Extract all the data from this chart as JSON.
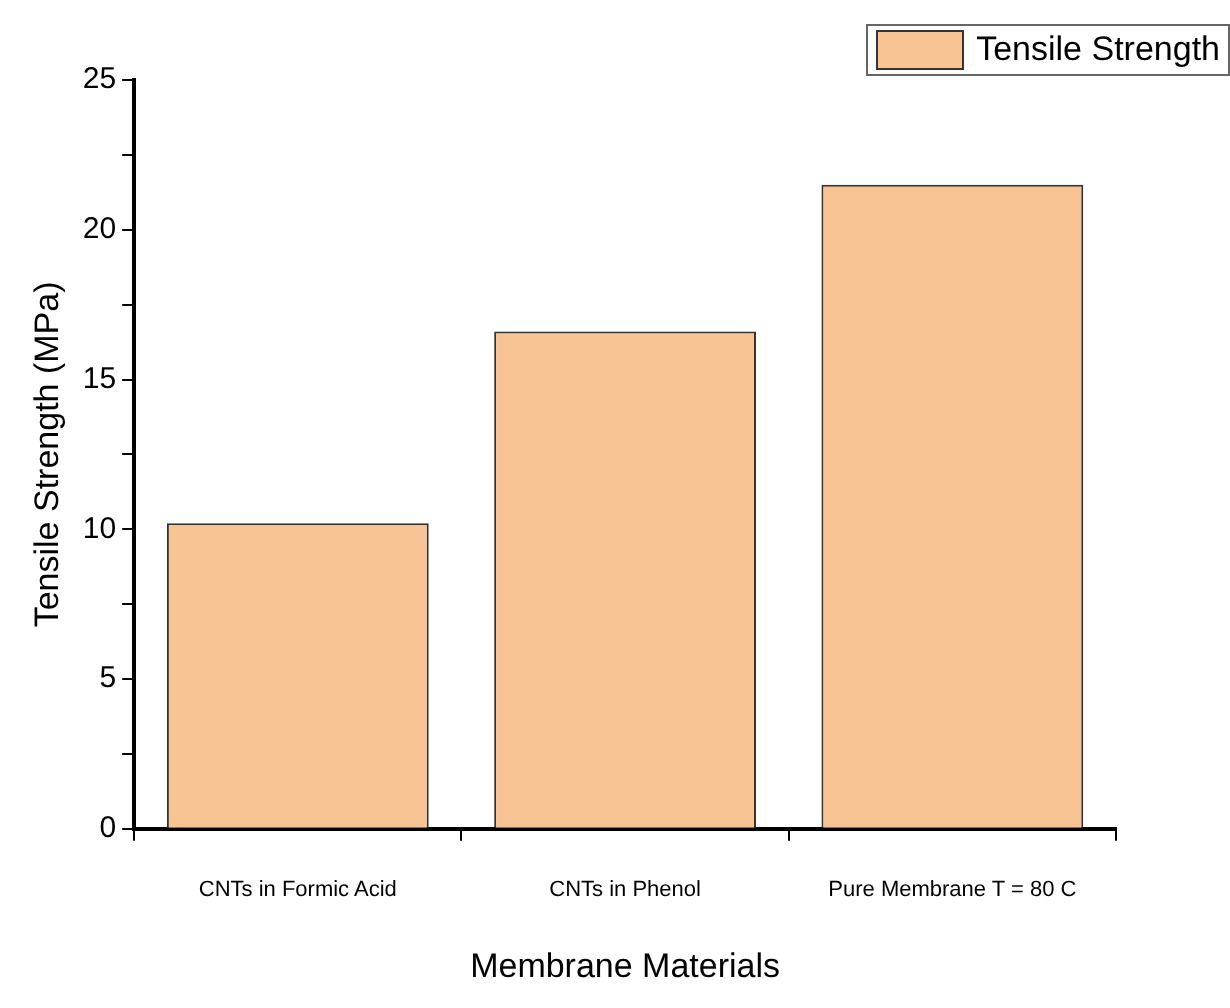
{
  "chart_data": {
    "type": "bar",
    "xlabel": "Membrane Materials",
    "ylabel": "Tensile Strength (MPa)",
    "categories": [
      "CNTs in Formic Acid",
      "CNTs in Phenol",
      "Pure Membrane T = 80 C"
    ],
    "series": [
      {
        "name": "Tensile Strength",
        "color": "#f8c493",
        "values": [
          10.2,
          16.6,
          21.5
        ]
      }
    ],
    "ylim": [
      0,
      25
    ],
    "yticks": [
      0,
      {
        "value": 2.5,
        "label": null
      },
      5,
      {
        "value": 7.5,
        "label": null
      },
      10,
      {
        "value": 12.5,
        "label": null
      },
      15,
      {
        "value": 17.5,
        "label": null
      },
      20,
      {
        "value": 22.5,
        "label": null
      },
      25
    ],
    "grid": false,
    "legend": "top right"
  }
}
